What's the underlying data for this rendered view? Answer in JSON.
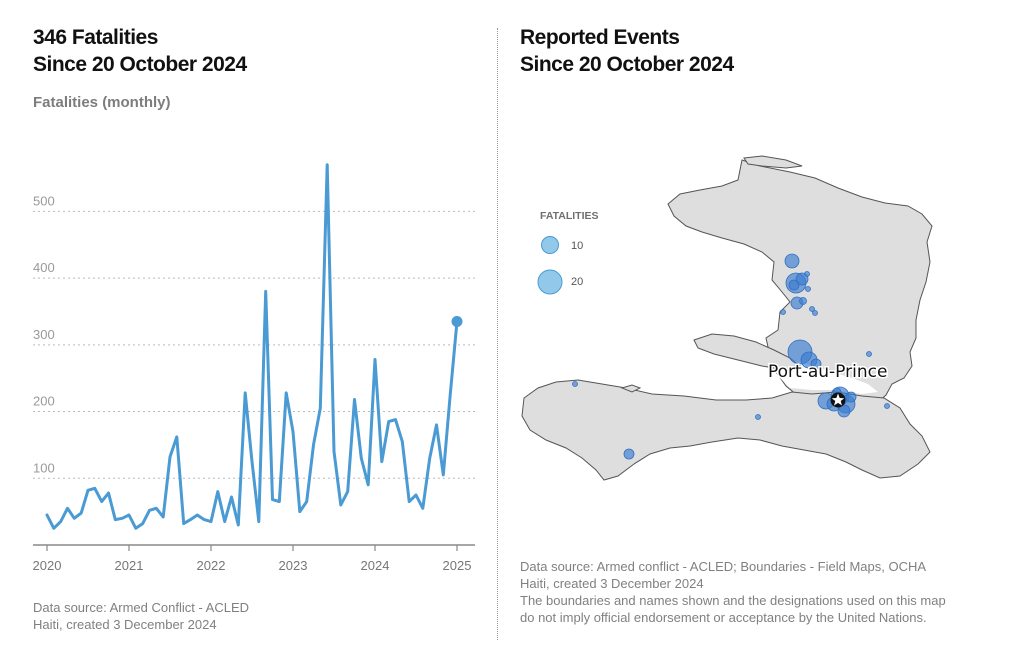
{
  "left_panel": {
    "title_line1": "346 Fatalities",
    "title_line2": "Since 20 October 2024",
    "source_line1": "Data source: Armed Conflict - ACLED",
    "source_line2": "Haiti, created 3 December 2024"
  },
  "right_panel": {
    "title_line1": "Reported Events",
    "title_line2": "Since 20 October 2024",
    "legend_title": "FATALITIES",
    "legend_small_label": "10",
    "legend_large_label": "20",
    "city_label": "Port-au-Prince",
    "source_line1": "Data source: Armed conflict - ACLED; Boundaries - Field Maps, OCHA",
    "source_line2": "Haiti, created 3 December 2024",
    "disclaimer_line1": "The boundaries and names shown and the designations used on this map",
    "disclaimer_line2": "do not imply official endorsement or acceptance by the United Nations."
  },
  "colors": {
    "line": "#4a9ad4",
    "grid": "#bbbbbb",
    "land": "#dedede",
    "bubble": "#3b7dd1"
  },
  "chart_data": {
    "type": "line",
    "ylabel": "Fatalities (monthly)",
    "x_tick_labels": [
      "2020",
      "2021",
      "2022",
      "2023",
      "2024",
      "2025"
    ],
    "y_tick_labels": [
      "100",
      "200",
      "300",
      "400",
      "500"
    ],
    "y_ticks": [
      100,
      200,
      300,
      400,
      500
    ],
    "ylim": [
      0,
      580
    ],
    "x_start_year": 2020,
    "grid": true,
    "series": [
      {
        "name": "",
        "values": [
          45,
          25,
          35,
          55,
          40,
          48,
          82,
          85,
          65,
          78,
          38,
          40,
          45,
          25,
          32,
          52,
          55,
          42,
          132,
          162,
          32,
          38,
          45,
          38,
          35,
          80,
          35,
          72,
          30,
          228,
          125,
          35,
          380,
          68,
          65,
          228,
          170,
          50,
          65,
          150,
          205,
          570,
          140,
          60,
          80,
          218,
          130,
          90,
          278,
          125,
          185,
          188,
          155,
          65,
          75,
          55,
          130,
          180,
          105,
          225,
          335
        ],
        "last_point": 335
      }
    ]
  }
}
